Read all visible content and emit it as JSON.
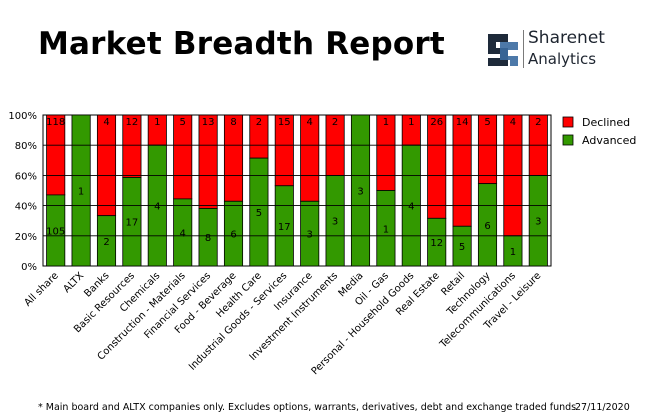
{
  "report": {
    "title": "Market Breadth Report",
    "logo_name": "Sharenet",
    "logo_sub": "Analytics",
    "footnote": "* Main board and ALTX companies only. Excludes options, warrants, derivatives, debt and exchange traded funds",
    "date": "27/11/2020"
  },
  "colors": {
    "declined": "#ff0000",
    "advanced": "#339900",
    "logo_accent": "#3a6aa0"
  },
  "icons": {
    "logo": "sharenet-logo-icon"
  },
  "chart_data": {
    "type": "bar",
    "stacked": "percent",
    "categories": [
      "All share",
      "ALTX",
      "Banks",
      "Basic Resources",
      "Chemicals",
      "Construction - Materials",
      "Financial Services",
      "Food - Beverage",
      "Health Care",
      "Industrial Goods - Services",
      "Insurance",
      "Investment Instruments",
      "Media",
      "Oil - Gas",
      "Personal - Household Goods",
      "Real Estate",
      "Retail",
      "Technology",
      "Telecommunications",
      "Travel - Leisure"
    ],
    "series": [
      {
        "name": "Advanced",
        "values": [
          105,
          1,
          2,
          17,
          4,
          4,
          8,
          6,
          5,
          17,
          3,
          3,
          3,
          1,
          4,
          12,
          5,
          6,
          1,
          3
        ]
      },
      {
        "name": "Declined",
        "values": [
          118,
          0,
          4,
          12,
          1,
          5,
          13,
          8,
          2,
          15,
          4,
          2,
          0,
          1,
          1,
          26,
          14,
          5,
          4,
          2
        ]
      }
    ],
    "legend": [
      "Declined",
      "Advanced"
    ],
    "legend_position": "right",
    "y_ticks": [
      "0%",
      "20%",
      "40%",
      "60%",
      "80%",
      "100%"
    ],
    "ylim": [
      0,
      100
    ],
    "grid": true
  }
}
